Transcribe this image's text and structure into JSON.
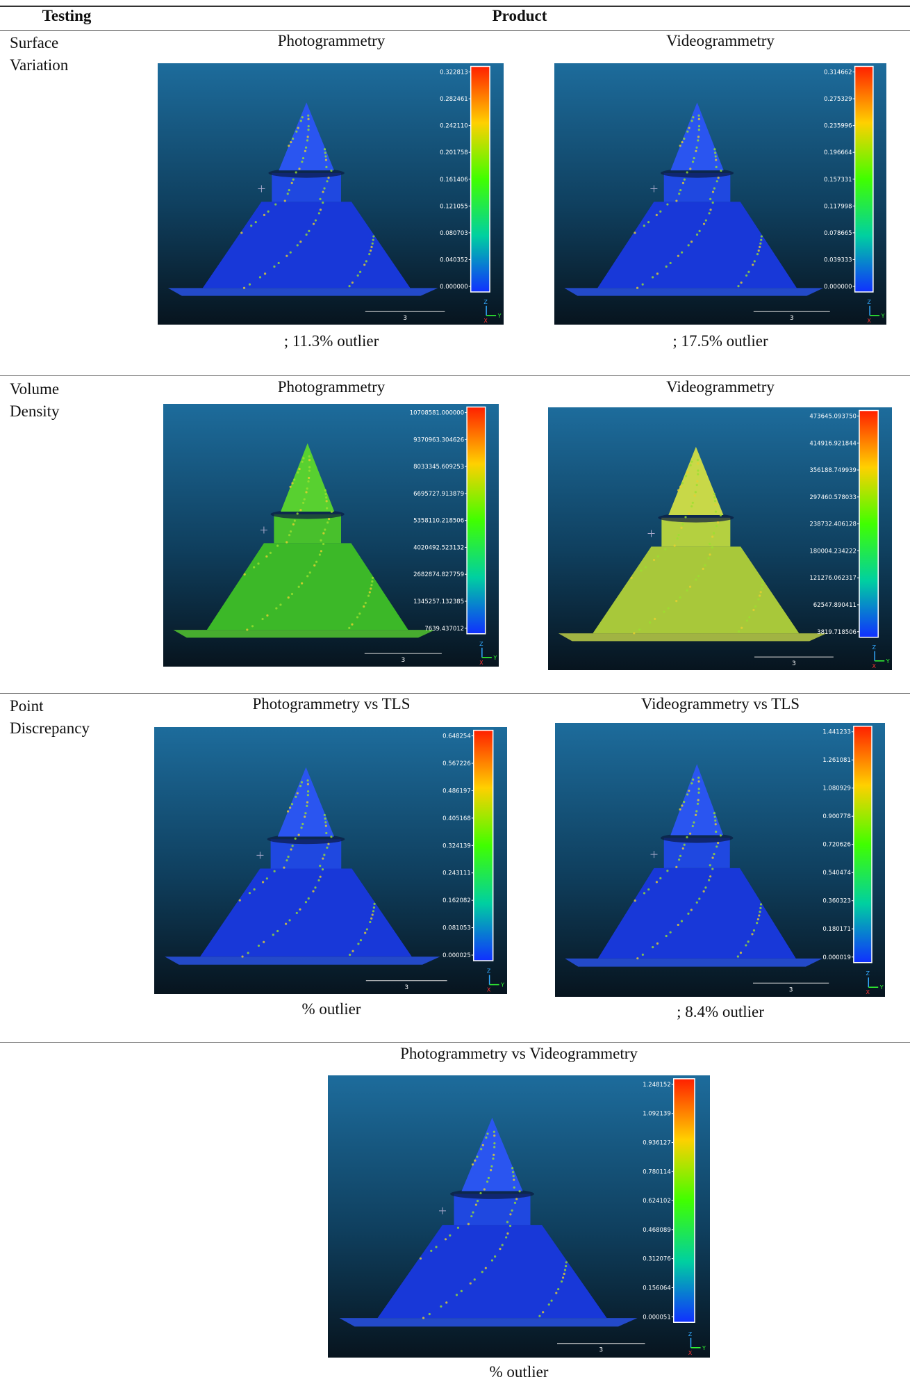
{
  "header": {
    "testing": "Testing",
    "product": "Product"
  },
  "rows": [
    {
      "label": "Surface Variation",
      "panels": [
        {
          "title": "Photogrammetry",
          "scale": [
            "0.322813",
            "0.282461",
            "0.242110",
            "0.201758",
            "0.161406",
            "0.121055",
            "0.080703",
            "0.040352",
            "0.000000"
          ],
          "scale_bar": "3",
          "axes": [
            "Z",
            "Y",
            "X"
          ],
          "caption": "; 11.3% outlier"
        },
        {
          "title": "Videogrammetry",
          "scale": [
            "0.314662",
            "0.275329",
            "0.235996",
            "0.196664",
            "0.157331",
            "0.117998",
            "0.078665",
            "0.039333",
            "0.000000"
          ],
          "scale_bar": "3",
          "axes": [
            "Z",
            "Y",
            "X"
          ],
          "caption": "; 17.5% outlier"
        }
      ]
    },
    {
      "label": "Volume Density",
      "panels": [
        {
          "title": "Photogrammetry",
          "scale": [
            "10708581.000000",
            "9370963.304626",
            "8033345.609253",
            "6695727.913879",
            "5358110.218506",
            "4020492.523132",
            "2682874.827759",
            "1345257.132385",
            "7639.437012"
          ],
          "scale_bar": "3",
          "axes": [
            "Z",
            "Y",
            "X"
          ]
        },
        {
          "title": "Videogrammetry",
          "scale": [
            "473645.093750",
            "414916.921844",
            "356188.749939",
            "297460.578033",
            "238732.406128",
            "180004.234222",
            "121276.062317",
            "62547.890411",
            "3819.718506"
          ],
          "scale_bar": "3",
          "axes": [
            "Z",
            "Y",
            "X"
          ]
        }
      ]
    },
    {
      "label": "Point Discrepancy",
      "panels": [
        {
          "title": "Photogrammetry vs TLS",
          "scale": [
            "0.648254",
            "0.567226",
            "0.486197",
            "0.405168",
            "0.324139",
            "0.243111",
            "0.162082",
            "0.081053",
            "0.000025"
          ],
          "scale_bar": "3",
          "axes": [
            "Z",
            "Y",
            "X"
          ],
          "caption": "% outlier"
        },
        {
          "title": "Videogrammetry vs TLS",
          "scale": [
            "1.441233",
            "1.261081",
            "1.080929",
            "0.900778",
            "0.720626",
            "0.540474",
            "0.360323",
            "0.180171",
            "0.000019"
          ],
          "scale_bar": "3",
          "axes": [
            "Z",
            "Y",
            "X"
          ],
          "caption": "; 8.4% outlier"
        }
      ]
    },
    {
      "panels": [
        {
          "title": "Photogrammetry vs Videogrammetry",
          "scale": [
            "1.248152",
            "1.092139",
            "0.936127",
            "0.780114",
            "0.624102",
            "0.468089",
            "0.312076",
            "0.156064",
            "0.000051"
          ],
          "scale_bar": "3",
          "axes": [
            "Z",
            "Y",
            "X"
          ],
          "caption": "% outlier"
        }
      ]
    }
  ]
}
